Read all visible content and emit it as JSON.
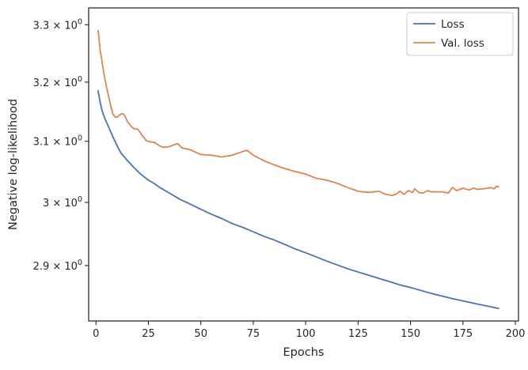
{
  "chart_data": {
    "type": "line",
    "xlabel": "Epochs",
    "ylabel": "Negative log-likelihood",
    "xlim": [
      -3.5,
      201.5
    ],
    "ylim": [
      2.815,
      3.33
    ],
    "y_scale": "log",
    "grid": false,
    "legend_position": "top-right",
    "x_ticks": [
      0,
      25,
      50,
      75,
      100,
      125,
      150,
      175,
      200
    ],
    "x_tick_labels": [
      "0",
      "25",
      "50",
      "75",
      "100",
      "125",
      "150",
      "175",
      "200"
    ],
    "y_ticks": [
      {
        "value": 3.3,
        "mantissa": "3.3"
      },
      {
        "value": 3.2,
        "mantissa": "3.2"
      },
      {
        "value": 3.1,
        "mantissa": "3.1"
      },
      {
        "value": 3.0,
        "mantissa": "3"
      },
      {
        "value": 2.9,
        "mantissa": "2.9"
      }
    ],
    "y_tick_base": "10",
    "y_tick_exponent": "0",
    "series": [
      {
        "name": "Loss",
        "color": "#4c72b0",
        "x": [
          1,
          2,
          3,
          4,
          5,
          6,
          7,
          8,
          10,
          12,
          15,
          18,
          20,
          22,
          25,
          28,
          30,
          35,
          40,
          45,
          50,
          55,
          60,
          65,
          70,
          75,
          80,
          85,
          90,
          95,
          100,
          110,
          120,
          130,
          140,
          145,
          150,
          160,
          170,
          180,
          192
        ],
        "values": [
          3.185,
          3.165,
          3.15,
          3.14,
          3.132,
          3.124,
          3.116,
          3.108,
          3.093,
          3.08,
          3.068,
          3.057,
          3.05,
          3.044,
          3.036,
          3.03,
          3.025,
          3.015,
          3.005,
          2.997,
          2.989,
          2.981,
          2.974,
          2.966,
          2.96,
          2.953,
          2.946,
          2.94,
          2.933,
          2.926,
          2.92,
          2.907,
          2.895,
          2.885,
          2.875,
          2.87,
          2.866,
          2.857,
          2.849,
          2.842,
          2.834
        ]
      },
      {
        "name": "Val. loss",
        "color": "#dd8452",
        "x": [
          1,
          2,
          3,
          4,
          5,
          6,
          7,
          8,
          9,
          10,
          11,
          12,
          13,
          14,
          15,
          17,
          18,
          20,
          22,
          24,
          26,
          28,
          30,
          32,
          35,
          37,
          39,
          41,
          45,
          48,
          50,
          55,
          60,
          65,
          70,
          72,
          75,
          80,
          85,
          90,
          95,
          100,
          105,
          110,
          115,
          120,
          125,
          130,
          135,
          138,
          140,
          141,
          143,
          145,
          147,
          149,
          151,
          152,
          154,
          156,
          158,
          160,
          165,
          168,
          170,
          172,
          175,
          178,
          180,
          182,
          185,
          188,
          190,
          191,
          192
        ],
        "values": [
          3.29,
          3.255,
          3.232,
          3.21,
          3.192,
          3.176,
          3.16,
          3.146,
          3.141,
          3.14,
          3.143,
          3.146,
          3.146,
          3.141,
          3.133,
          3.124,
          3.121,
          3.12,
          3.11,
          3.101,
          3.099,
          3.098,
          3.093,
          3.09,
          3.091,
          3.094,
          3.096,
          3.089,
          3.086,
          3.081,
          3.078,
          3.077,
          3.074,
          3.077,
          3.083,
          3.085,
          3.077,
          3.068,
          3.061,
          3.055,
          3.05,
          3.046,
          3.039,
          3.036,
          3.031,
          3.024,
          3.018,
          3.016,
          3.018,
          3.013,
          3.012,
          3.011,
          3.013,
          3.018,
          3.013,
          3.019,
          3.016,
          3.022,
          3.016,
          3.015,
          3.019,
          3.017,
          3.017,
          3.015,
          3.024,
          3.019,
          3.023,
          3.02,
          3.023,
          3.021,
          3.022,
          3.024,
          3.022,
          3.026,
          3.025
        ]
      }
    ]
  }
}
